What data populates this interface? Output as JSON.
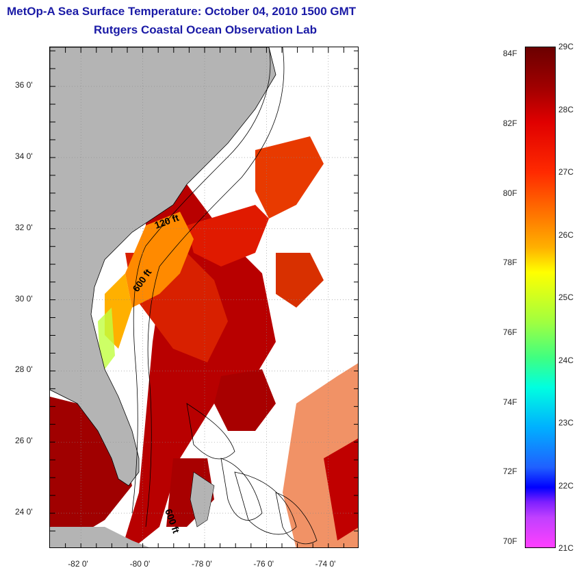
{
  "title": "MetOp-A Sea Surface Temperature:  October 04, 2010 1500 GMT",
  "subtitle": "Rutgers Coastal Ocean Observation Lab",
  "map": {
    "lat_labels": [
      "36 0'",
      "34 0'",
      "32 0'",
      "30 0'",
      "28 0'",
      "26 0'",
      "24 0'"
    ],
    "lat_values": [
      36,
      34,
      32,
      30,
      28,
      26,
      24
    ],
    "lon_labels": [
      "-82 0'",
      "-80 0'",
      "-78 0'",
      "-76 0'",
      "-74 0'"
    ],
    "lon_values": [
      -82,
      -80,
      -78,
      -76,
      -74
    ],
    "lat_range": [
      23,
      37.1
    ],
    "lon_range": [
      -83,
      -73
    ],
    "isobath_labels": [
      "120 ft",
      "600 ft",
      "600 ft"
    ],
    "colors": {
      "land": "#b4b4b4",
      "ocean_nodata": "#ffffff",
      "warm": "#b00000"
    }
  },
  "colorbar": {
    "f_labels": [
      "84F",
      "82F",
      "80F",
      "78F",
      "76F",
      "74F",
      "72F",
      "70F"
    ],
    "c_labels": [
      "29C",
      "28C",
      "27C",
      "26C",
      "25C",
      "24C",
      "23C",
      "22C",
      "21C"
    ],
    "range_c": [
      21,
      29
    ]
  }
}
